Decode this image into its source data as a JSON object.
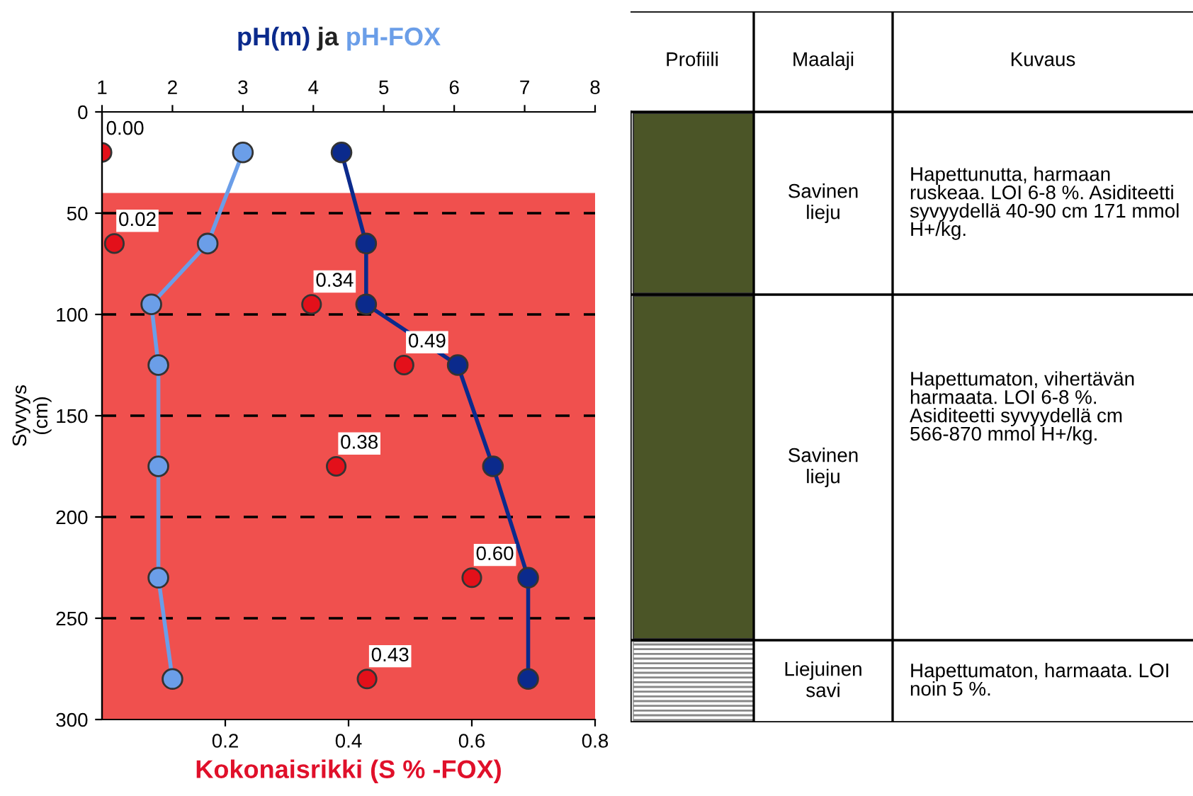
{
  "chart_data": [
    {
      "type": "line",
      "orientation": "horizontal",
      "ylabel": "Syvyys\n(cm)",
      "xlabel": "Kokonaisrikki (S % -FOX)",
      "x2label": "ja",
      "ylim": [
        300,
        0
      ],
      "yticks": [
        0,
        50,
        100,
        150,
        200,
        250,
        300
      ],
      "xlim": [
        0,
        0.8
      ],
      "xticks": [
        0.2,
        0.4,
        0.6,
        0.8
      ],
      "x2lim": [
        1,
        8
      ],
      "x2ticks": [
        1,
        2,
        3,
        4,
        5,
        6,
        7,
        8
      ],
      "grid": "y",
      "legend": false,
      "marker": "circle",
      "bands": [
        {
          "axis": "y",
          "from": 40,
          "to": 300,
          "color": "#f0504e"
        }
      ],
      "series": [
        {
          "name": "pH(m)",
          "type": "line",
          "axis": "x2",
          "color": "#0b2a8c",
          "values": [
            4.4,
            4.75,
            4.75,
            6.05,
            6.55,
            7.05,
            7.05
          ],
          "x": [
            20,
            65,
            95,
            125,
            175,
            230,
            280
          ]
        },
        {
          "name": "pH-FOX",
          "type": "line",
          "axis": "x2",
          "color": "#6b9ee8",
          "values": [
            3.0,
            2.5,
            1.7,
            1.8,
            1.8,
            1.8,
            2.0
          ],
          "x": [
            20,
            65,
            95,
            125,
            175,
            230,
            280
          ]
        },
        {
          "type": "scatter",
          "color": "#e3101a",
          "values": [
            0.0,
            0.02,
            0.34,
            0.49,
            0.38,
            0.6,
            0.43
          ],
          "x": [
            20,
            65,
            95,
            125,
            175,
            230,
            280
          ],
          "value_labels": [
            "0.00",
            "0.02",
            "0.34",
            "0.49",
            "0.38",
            "0.60",
            "0.43"
          ]
        }
      ]
    },
    {
      "type": "other",
      "annotations": [
        "Profiili",
        "Maalaji",
        "Kuvaus",
        "Savinen\nlieju",
        "Hapettunutta, harmaan\nruskeaa. LOI 6-8 %. Asiditeetti\nsyvyydellä 40-90 cm 171 mmol\nH+/kg.",
        "Savinen\nlieju",
        "Hapettumaton, vihertävän\nharmaata. LOI 6-8 %.\nAsiditeetti syvyydellä cm\n566-870 mmol H+/kg.",
        "Liejuinen\nsavi",
        "Hapettumaton, harmaata. LOI\nnoin 5 %."
      ]
    }
  ]
}
